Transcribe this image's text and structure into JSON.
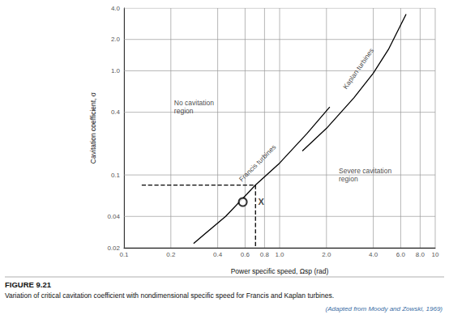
{
  "chart_data": {
    "type": "line",
    "title": "FIGURE 9.21",
    "subtitle": "Variation of critical cavitation coefficient with nondimensional specific speed for Francis and Kaplan turbines.",
    "source": "(Adapted from Moody and Zowski, 1969)",
    "x_label": "Power specific speed, Ωsp (rad)",
    "y_label": "Cavitation coefficient, σ",
    "log": true,
    "grid": true,
    "xlim": [
      0.1,
      10
    ],
    "ylim": [
      0.02,
      4.0
    ],
    "xticks": [
      0.1,
      0.2,
      0.4,
      0.6,
      0.8,
      {
        "value": 1,
        "label": "1.0"
      },
      {
        "value": 2,
        "label": "2.0"
      },
      {
        "value": 4,
        "label": "4.0"
      },
      {
        "value": 6,
        "label": "6.0"
      },
      {
        "value": 8,
        "label": "8.0"
      },
      10
    ],
    "yticks": [
      0.02,
      0.04,
      0.1,
      0.4,
      {
        "value": 1,
        "label": "1.0"
      },
      {
        "value": 2,
        "label": "2.0"
      },
      {
        "value": 4,
        "label": "4.0"
      }
    ],
    "series": [
      {
        "type": "line",
        "color": "#000000",
        "marker": "none",
        "line_style": "solid",
        "x": [
          0.28,
          0.45,
          0.7,
          1.0,
          1.5,
          2.1
        ],
        "values": [
          0.022,
          0.04,
          0.08,
          0.13,
          0.25,
          0.45
        ]
      },
      {
        "type": "line",
        "color": "#000000",
        "marker": "none",
        "line_style": "solid",
        "x": [
          1.4,
          2.0,
          3.0,
          4.0,
          5.0,
          6.5
        ],
        "values": [
          0.17,
          0.28,
          0.55,
          0.95,
          1.6,
          3.5
        ]
      },
      {
        "type": "line",
        "color": "#000000",
        "marker": "none",
        "line_style": "dashed",
        "x": [
          0.13,
          0.7,
          0.7
        ],
        "values": [
          0.08,
          0.08,
          0.02
        ]
      },
      {
        "type": "scatter",
        "color": "#000000",
        "marker": "circle",
        "x": [
          0.58
        ],
        "values": [
          0.055
        ]
      }
    ],
    "annotations": [
      {
        "text": "No cavitation region",
        "x": 0.21,
        "y": 0.45
      },
      {
        "text": "Severe cavitation region",
        "x": 2.4,
        "y": 0.1
      },
      {
        "text": "Francis turbines",
        "x": 0.72,
        "y": 0.13
      },
      {
        "text": "Kaplan turbines",
        "x": 3.2,
        "y": 1.05
      },
      {
        "text": "X",
        "x": 0.76,
        "y": 0.055
      }
    ]
  }
}
